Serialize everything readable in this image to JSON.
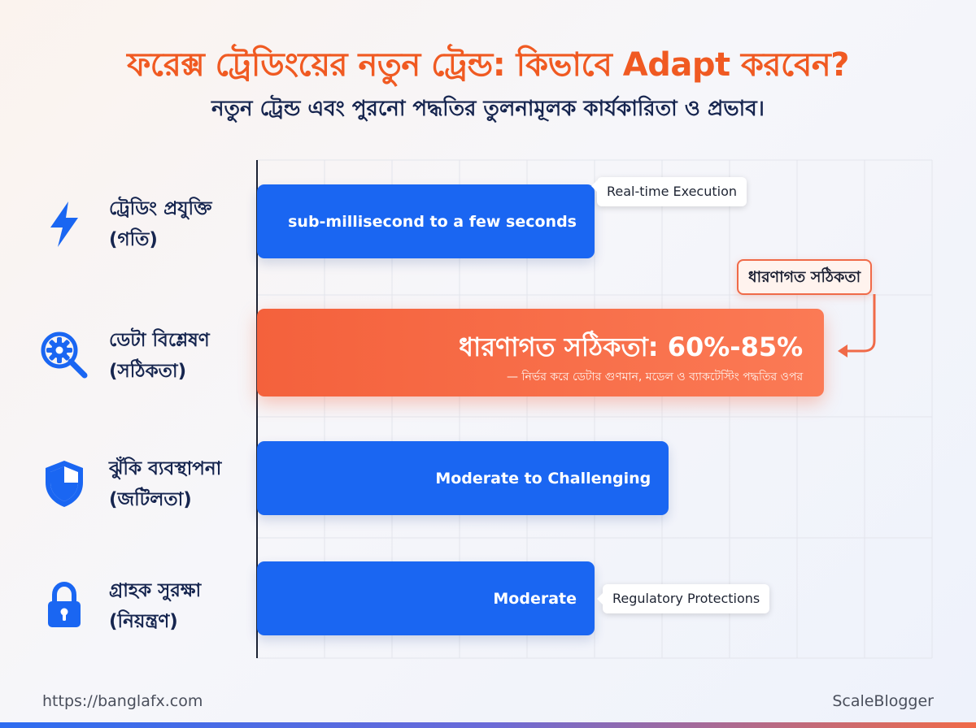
{
  "header": {
    "title": "ফরেক্স ট্রেডিংয়ের নতুন ট্রেন্ড: কিভাবে Adapt করবেন?",
    "subtitle": "নতুন ট্রেন্ড এবং পুরনো পদ্ধতির তুলনামূলক কার্যকারিতা ও প্রভাব।"
  },
  "colors": {
    "title": "#f05a22",
    "text_dark": "#16254f",
    "bar_blue": "#1a66f2",
    "bar_orange": "#f4613c",
    "accent_orange": "#f06a48"
  },
  "categories": [
    {
      "icon": "lightning-icon",
      "line1": "ট্রেডিং প্রযুক্তি",
      "line2": "(গতি)"
    },
    {
      "icon": "gear-magnifier-icon",
      "line1": "ডেটা বিশ্লেষণ",
      "line2": "(সঠিকতা)"
    },
    {
      "icon": "shield-icon",
      "line1": "ঝুঁকি ব্যবস্থাপনা",
      "line2": "(জটিলতা)"
    },
    {
      "icon": "lock-icon",
      "line1": "গ্রাহক সুরক্ষা",
      "line2": "(নিয়ন্ত্রণ)"
    }
  ],
  "chart_data": {
    "type": "bar",
    "orientation": "horizontal",
    "grid": true,
    "categories": [
      "ট্রেডিং প্রযুক্তি (গতি)",
      "ডেটা বিশ্লেষণ (সঠিকতা)",
      "ঝুঁকি ব্যবস্থাপনা (জটিলতা)",
      "গ্রাহক সুরক্ষা (নিয়ন্ত্রণ)"
    ],
    "values": [
      5,
      8.4,
      6.1,
      5
    ],
    "xlim": [
      0,
      10
    ],
    "bar_labels": [
      "sub-millisecond to a few seconds",
      "ধারণাগত সঠিকতা: 60%-85%",
      "Moderate to Challenging",
      "Moderate"
    ],
    "bar_sublabel": "— নির্ভর করে ডেটার গুণমান, মডেল ও ব্যাকটেস্টিং পদ্ধতির ওপর",
    "annotations": {
      "real_time": "Real-time Execution",
      "accuracy_tag": "ধারণাগত সঠিকতা",
      "regulatory": "Regulatory Protections"
    }
  },
  "footer": {
    "url": "https://banglafx.com",
    "brand": "ScaleBlogger"
  }
}
